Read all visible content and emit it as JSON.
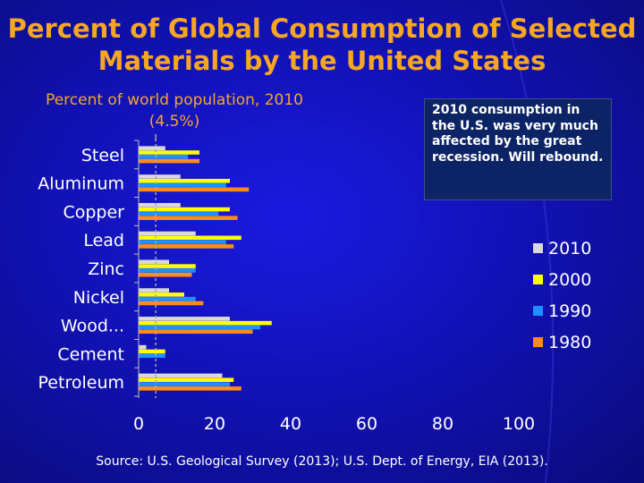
{
  "title": "Percent of Global Consumption of Selected Materials by the United States",
  "subtitle": "Percent of world population, 2010 (4.5%)",
  "note": "2010 consumption in the U.S. was very much affected by the great recession.  Will rebound.",
  "source": "Source: U.S. Geological Survey (2013); U.S. Dept. of Energy, EIA (2013).",
  "chart_data": {
    "type": "bar",
    "orientation": "horizontal",
    "title": "Percent of Global Consumption of Selected Materials by the United States",
    "xlabel": "",
    "ylabel": "",
    "xlim": [
      0,
      100
    ],
    "xticks": [
      0,
      20,
      40,
      60,
      80,
      100
    ],
    "grid": false,
    "legend": "right",
    "reference_line": {
      "value": 4.5,
      "label": "Percent of world population, 2010 (4.5%)"
    },
    "categories": [
      "Steel",
      "Aluminum",
      "Copper",
      "Lead",
      "Zinc",
      "Nickel",
      "Wood...",
      "Cement",
      "Petroleum"
    ],
    "series": [
      {
        "name": "2010",
        "color": "#d9d9d9",
        "values": [
          7,
          11,
          11,
          15,
          8,
          8,
          24,
          2,
          22
        ]
      },
      {
        "name": "2000",
        "color": "#ffff00",
        "values": [
          16,
          24,
          24,
          27,
          15,
          12,
          35,
          7,
          25
        ]
      },
      {
        "name": "1990",
        "color": "#1e90ff",
        "values": [
          13,
          23,
          21,
          23,
          15,
          15,
          32,
          7,
          24
        ]
      },
      {
        "name": "1980",
        "color": "#ff8c1a",
        "values": [
          16,
          29,
          26,
          25,
          14,
          17,
          30,
          0,
          27
        ]
      }
    ]
  }
}
